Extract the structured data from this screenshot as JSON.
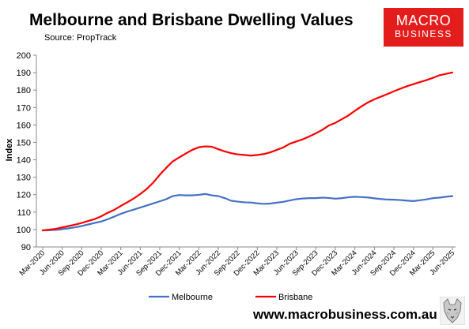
{
  "header": {
    "title": "Melbourne and Brisbane Dwelling Values",
    "source": "Source: PropTrack"
  },
  "logo": {
    "line1": "MACRO",
    "line2": "BUSINESS"
  },
  "footer": {
    "url": "www.macrobusiness.com.au"
  },
  "colors": {
    "melbourne": "#4472c4",
    "brisbane": "#ff0000",
    "logo_bg": "#e31c1c"
  },
  "chart_data": {
    "type": "line",
    "ylabel": "Index",
    "xlabel": "",
    "ylim": [
      90,
      200
    ],
    "yticks": [
      90,
      100,
      110,
      120,
      130,
      140,
      150,
      160,
      170,
      180,
      190,
      200
    ],
    "x": [
      "Mar-2020",
      "Apr-2020",
      "May-2020",
      "Jun-2020",
      "Jul-2020",
      "Aug-2020",
      "Sep-2020",
      "Oct-2020",
      "Nov-2020",
      "Dec-2020",
      "Jan-2021",
      "Feb-2021",
      "Mar-2021",
      "Apr-2021",
      "May-2021",
      "Jun-2021",
      "Jul-2021",
      "Aug-2021",
      "Sep-2021",
      "Oct-2021",
      "Nov-2021",
      "Dec-2021",
      "Jan-2022",
      "Feb-2022",
      "Mar-2022",
      "Apr-2022",
      "May-2022",
      "Jun-2022",
      "Jul-2022",
      "Aug-2022",
      "Sep-2022",
      "Oct-2022",
      "Nov-2022",
      "Dec-2022",
      "Jan-2023",
      "Feb-2023",
      "Mar-2023",
      "Apr-2023",
      "May-2023",
      "Jun-2023",
      "Jul-2023",
      "Aug-2023",
      "Sep-2023",
      "Oct-2023",
      "Nov-2023",
      "Dec-2023",
      "Jan-2024",
      "Feb-2024",
      "Mar-2024",
      "Apr-2024",
      "May-2024",
      "Jun-2024",
      "Jul-2024",
      "Aug-2024",
      "Sep-2024",
      "Oct-2024",
      "Nov-2024",
      "Dec-2024",
      "Jan-2025",
      "Feb-2025",
      "Mar-2025",
      "Apr-2025",
      "May-2025",
      "Jun-2025"
    ],
    "xtick_labels": [
      "Mar-2020",
      "Jun-2020",
      "Sep-2020",
      "Dec-2020",
      "Mar-2021",
      "Jun-2021",
      "Sep-2021",
      "Dec-2021",
      "Mar-2022",
      "Jun-2022",
      "Sep-2022",
      "Dec-2022",
      "Mar-2023",
      "Jun-2023",
      "Sep-2023",
      "Dec-2023",
      "Mar-2024",
      "Jun-2024",
      "Sep-2024",
      "Dec-2024",
      "Mar-2025",
      "Jun-2025"
    ],
    "series": [
      {
        "name": "Melbourne",
        "color": "#4472c4",
        "values": [
          99.5,
          99.6,
          99.8,
          100.2,
          100.7,
          101.3,
          102.0,
          102.9,
          103.8,
          104.6,
          105.9,
          107.4,
          109.0,
          110.3,
          111.4,
          112.6,
          113.8,
          115.0,
          116.2,
          117.4,
          119.2,
          119.8,
          119.6,
          119.6,
          119.9,
          120.4,
          119.6,
          119.2,
          118.0,
          116.5,
          116.0,
          115.6,
          115.5,
          115.0,
          114.7,
          114.9,
          115.4,
          115.9,
          116.7,
          117.4,
          117.8,
          118.0,
          118.0,
          118.3,
          118.1,
          117.7,
          118.0,
          118.5,
          118.8,
          118.6,
          118.4,
          117.9,
          117.5,
          117.2,
          117.1,
          116.9,
          116.6,
          116.3,
          116.8,
          117.3,
          118.0,
          118.3,
          118.8,
          119.2
        ]
      },
      {
        "name": "Brisbane",
        "color": "#ff0000",
        "values": [
          99.5,
          99.9,
          100.4,
          101.2,
          102.0,
          102.8,
          103.8,
          104.9,
          106.0,
          107.6,
          109.6,
          111.3,
          113.5,
          115.6,
          117.8,
          120.4,
          123.3,
          126.9,
          131.4,
          135.4,
          139.1,
          141.4,
          143.6,
          145.7,
          147.2,
          147.7,
          147.5,
          146.1,
          144.8,
          143.8,
          143.1,
          142.8,
          142.4,
          142.8,
          143.3,
          144.3,
          145.7,
          147.1,
          149.2,
          150.5,
          151.8,
          153.4,
          155.2,
          157.2,
          159.7,
          161.2,
          163.3,
          165.4,
          168.1,
          170.6,
          172.9,
          174.7,
          176.2,
          177.7,
          179.3,
          180.8,
          182.2,
          183.4,
          184.6,
          185.7,
          187.0,
          188.5,
          189.3,
          190.1
        ]
      }
    ],
    "legend": {
      "position": "bottom"
    },
    "grid": false
  }
}
